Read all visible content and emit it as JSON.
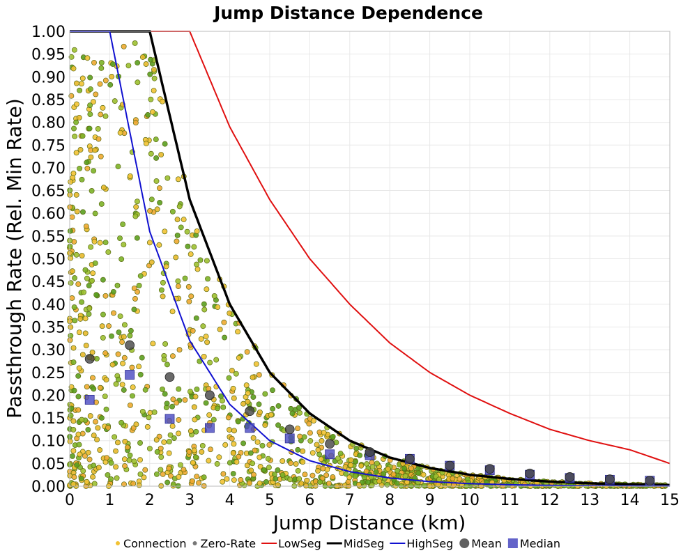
{
  "chart_data": {
    "type": "scatter",
    "title": "Jump Distance Dependence",
    "xlabel": "Jump Distance (km)",
    "ylabel": "Passthrough Rate (Rel. Min Rate)",
    "xlim": [
      0,
      15
    ],
    "ylim": [
      0,
      1.0
    ],
    "x_ticks": [
      "0",
      "1",
      "2",
      "3",
      "4",
      "5",
      "6",
      "7",
      "8",
      "9",
      "10",
      "11",
      "12",
      "13",
      "14",
      "15"
    ],
    "y_ticks": [
      "0.00",
      "0.05",
      "0.10",
      "0.15",
      "0.20",
      "0.25",
      "0.30",
      "0.35",
      "0.40",
      "0.45",
      "0.50",
      "0.55",
      "0.60",
      "0.65",
      "0.70",
      "0.75",
      "0.80",
      "0.85",
      "0.90",
      "0.95",
      "1.00"
    ],
    "grid": true,
    "legend_position": "bottom",
    "legend": [
      {
        "label": "Connection",
        "kind": "dot",
        "color": "#f2c233"
      },
      {
        "label": "Zero-Rate",
        "kind": "dot",
        "color": "#777777"
      },
      {
        "label": "LowSeg",
        "kind": "line",
        "color": "#e01010"
      },
      {
        "label": "MidSeg",
        "kind": "line",
        "color": "#000000"
      },
      {
        "label": "HighSeg",
        "kind": "line",
        "color": "#1010d0"
      },
      {
        "label": "Mean",
        "kind": "circle",
        "color": "#444444"
      },
      {
        "label": "Median",
        "kind": "square",
        "color": "#4848c0"
      }
    ],
    "curves": [
      {
        "name": "LowSeg",
        "color": "#e01010",
        "width": 2,
        "x": [
          0,
          1,
          2,
          3,
          4,
          5,
          6,
          7,
          8,
          9,
          10,
          11,
          12,
          13,
          14,
          15
        ],
        "y": [
          1.0,
          1.0,
          1.0,
          1.0,
          0.79,
          0.63,
          0.5,
          0.4,
          0.315,
          0.25,
          0.2,
          0.16,
          0.125,
          0.1,
          0.08,
          0.05
        ]
      },
      {
        "name": "MidSeg",
        "color": "#000000",
        "width": 3.5,
        "x": [
          0,
          1,
          2,
          3,
          4,
          5,
          6,
          7,
          8,
          9,
          10,
          11,
          12,
          13,
          14,
          15
        ],
        "y": [
          1.0,
          1.0,
          1.0,
          0.63,
          0.4,
          0.25,
          0.16,
          0.1,
          0.063,
          0.04,
          0.025,
          0.016,
          0.01,
          0.0063,
          0.004,
          0.0025
        ]
      },
      {
        "name": "HighSeg",
        "color": "#1010d0",
        "width": 2,
        "x": [
          0,
          1,
          2,
          3,
          4,
          5,
          6,
          7,
          8,
          9,
          10,
          11,
          12,
          13,
          14,
          15
        ],
        "y": [
          1.0,
          1.0,
          0.56,
          0.32,
          0.18,
          0.1,
          0.056,
          0.032,
          0.018,
          0.01,
          0.0056,
          0.0032,
          0.0018,
          0.001,
          0.00056,
          0.00032
        ]
      }
    ],
    "mean": {
      "x": [
        0.5,
        1.5,
        2.5,
        3.5,
        4.5,
        5.5,
        6.5,
        7.5,
        8.5,
        9.5,
        10.5,
        11.5,
        12.5,
        13.5,
        14.5
      ],
      "y": [
        0.28,
        0.31,
        0.24,
        0.2,
        0.165,
        0.125,
        0.093,
        0.075,
        0.06,
        0.045,
        0.038,
        0.028,
        0.02,
        0.015,
        0.012
      ]
    },
    "median": {
      "x": [
        0.5,
        1.5,
        2.5,
        3.5,
        4.5,
        5.5,
        6.5,
        7.5,
        8.5,
        9.5,
        10.5,
        11.5,
        12.5,
        13.5,
        14.5
      ],
      "y": [
        0.19,
        0.245,
        0.148,
        0.128,
        0.128,
        0.105,
        0.07,
        0.068,
        0.06,
        0.045,
        0.035,
        0.025,
        0.018,
        0.014,
        0.012
      ]
    }
  }
}
